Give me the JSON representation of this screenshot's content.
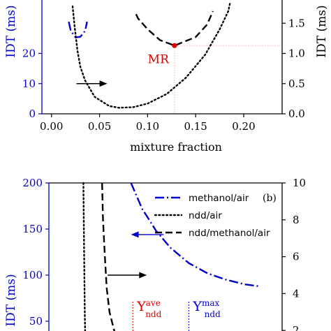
{
  "chart_data": [
    {
      "type": "line",
      "panel": "a",
      "xlabel": "mixture fraction",
      "ylabel_left": "IDT (ms)",
      "ylabel_right": "IDT (ms)",
      "xlim": [
        -0.01,
        0.24
      ],
      "ylim_left": [
        0,
        40
      ],
      "ylim_right": [
        0,
        2.0
      ],
      "xticks": [
        "0.00",
        "0.05",
        "0.10",
        "0.15",
        "0.20"
      ],
      "yticks_left": [
        "0",
        "10",
        "20"
      ],
      "yticks_right": [
        "0.0",
        "0.5",
        "1.0",
        "1.5"
      ],
      "colors": {
        "left_axis": "#0000cc",
        "right_axis": "#000000",
        "mr": "#e00000"
      },
      "annotation": {
        "label": "MR",
        "x": 0.128,
        "y_right": 1.13
      },
      "series": [
        {
          "style": "dashdot",
          "color": "#0000cc",
          "axis": "left",
          "x": [
            0.018,
            0.02,
            0.025,
            0.03,
            0.035,
            0.037
          ],
          "y": [
            30.5,
            27.5,
            25.3,
            25.5,
            27.5,
            30.5
          ]
        },
        {
          "style": "dashed",
          "color": "#000000",
          "axis": "right",
          "x": [
            0.088,
            0.09,
            0.1,
            0.113,
            0.128,
            0.15,
            0.162,
            0.168
          ],
          "y": [
            1.65,
            1.58,
            1.4,
            1.22,
            1.13,
            1.27,
            1.48,
            1.7
          ]
        },
        {
          "style": "dotted",
          "color": "#000000",
          "axis": "right",
          "x": [
            0.022,
            0.024,
            0.027,
            0.03,
            0.035,
            0.045,
            0.06,
            0.07,
            0.085,
            0.1,
            0.12,
            0.14,
            0.16,
            0.175,
            0.184,
            0.186
          ],
          "y": [
            1.78,
            1.45,
            1.05,
            0.78,
            0.55,
            0.28,
            0.13,
            0.1,
            0.11,
            0.17,
            0.33,
            0.6,
            0.98,
            1.4,
            1.7,
            1.85
          ]
        }
      ],
      "arrows": [
        {
          "direction": "right",
          "x_from": 0.026,
          "x_to": 0.058,
          "y_right": 0.5
        }
      ]
    },
    {
      "type": "line",
      "panel": "b",
      "panel_label": "(b)",
      "ylabel_left": "IDT (ms)",
      "ylim_left": [
        0,
        200
      ],
      "ylim_right": [
        0,
        10
      ],
      "yticks_left": [
        "50",
        "100",
        "150",
        "200"
      ],
      "yticks_right": [
        "2",
        "4",
        "6",
        "8",
        "10"
      ],
      "colors": {
        "left_axis": "#0000cc",
        "right_axis": "#000000",
        "ave": "#e00000",
        "max": "#0000cc"
      },
      "legend": {
        "position": "top-right",
        "entries": [
          "methanol/air",
          "ndd/air",
          "ndd/methanol/air"
        ]
      },
      "series": [
        {
          "name": "methanol/air",
          "style": "dashdot",
          "color": "#0000cc",
          "axis": "left",
          "x": [
            0.078,
            0.09,
            0.105,
            0.12,
            0.14,
            0.16,
            0.18,
            0.2,
            0.215
          ],
          "y": [
            200,
            172,
            148,
            130,
            113,
            102,
            95,
            90,
            88
          ]
        },
        {
          "name": "ndd/air",
          "style": "dotted",
          "color": "#000000",
          "axis": "right",
          "x": [
            0.027,
            0.0275,
            0.028,
            0.0285,
            0.029
          ],
          "y": [
            10.0,
            7.5,
            5.0,
            3.0,
            1.5
          ]
        },
        {
          "name": "ndd/methanol/air",
          "style": "dashed",
          "color": "#000000",
          "axis": "right",
          "x": [
            0.047,
            0.048,
            0.05,
            0.052,
            0.055,
            0.06,
            0.065
          ],
          "y": [
            10.0,
            8.0,
            6.0,
            4.3,
            3.0,
            2.0,
            1.5
          ]
        }
      ],
      "arrows": [
        {
          "direction": "left",
          "color": "#0000cc",
          "x_from": 0.113,
          "x_to": 0.078,
          "y_left": 144
        },
        {
          "direction": "right",
          "color": "#000000",
          "x_from": 0.053,
          "x_to": 0.095,
          "y_right": 5.0
        },
        {
          "direction": "right",
          "color": "#000000",
          "x_from": 0.032,
          "x_to": 0.055,
          "y_right": 1.8
        }
      ],
      "markers": [
        {
          "label_main": "Y",
          "label_sup": "ave",
          "label_sub": "ndd",
          "color": "#e00000",
          "x": 0.08
        },
        {
          "label_main": "Y",
          "label_sup": "max",
          "label_sub": "ndd",
          "color": "#0000cc",
          "x": 0.14
        }
      ]
    }
  ]
}
